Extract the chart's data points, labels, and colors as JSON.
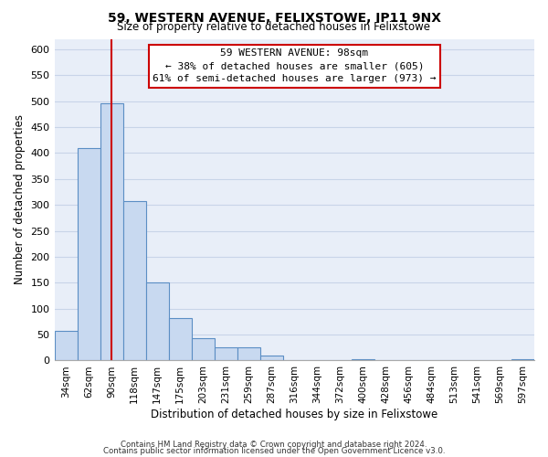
{
  "title": "59, WESTERN AVENUE, FELIXSTOWE, IP11 9NX",
  "subtitle": "Size of property relative to detached houses in Felixstowe",
  "xlabel": "Distribution of detached houses by size in Felixstowe",
  "ylabel": "Number of detached properties",
  "bar_labels": [
    "34sqm",
    "62sqm",
    "90sqm",
    "118sqm",
    "147sqm",
    "175sqm",
    "203sqm",
    "231sqm",
    "259sqm",
    "287sqm",
    "316sqm",
    "344sqm",
    "372sqm",
    "400sqm",
    "428sqm",
    "456sqm",
    "484sqm",
    "513sqm",
    "541sqm",
    "569sqm",
    "597sqm"
  ],
  "bar_values": [
    57,
    410,
    495,
    307,
    150,
    82,
    43,
    25,
    25,
    10,
    0,
    0,
    0,
    2,
    0,
    0,
    0,
    0,
    0,
    0,
    2
  ],
  "bar_color": "#c8d9f0",
  "bar_edge_color": "#5b8ec4",
  "red_line_index": 2,
  "ylim": [
    0,
    620
  ],
  "yticks": [
    0,
    50,
    100,
    150,
    200,
    250,
    300,
    350,
    400,
    450,
    500,
    550,
    600
  ],
  "annotation_title": "59 WESTERN AVENUE: 98sqm",
  "annotation_line1": "← 38% of detached houses are smaller (605)",
  "annotation_line2": "61% of semi-detached houses are larger (973) →",
  "footer_line1": "Contains HM Land Registry data © Crown copyright and database right 2024.",
  "footer_line2": "Contains public sector information licensed under the Open Government Licence v3.0.",
  "red_line_color": "#cc0000",
  "grid_color": "#c8d4e8",
  "background_color": "#e8eef8"
}
